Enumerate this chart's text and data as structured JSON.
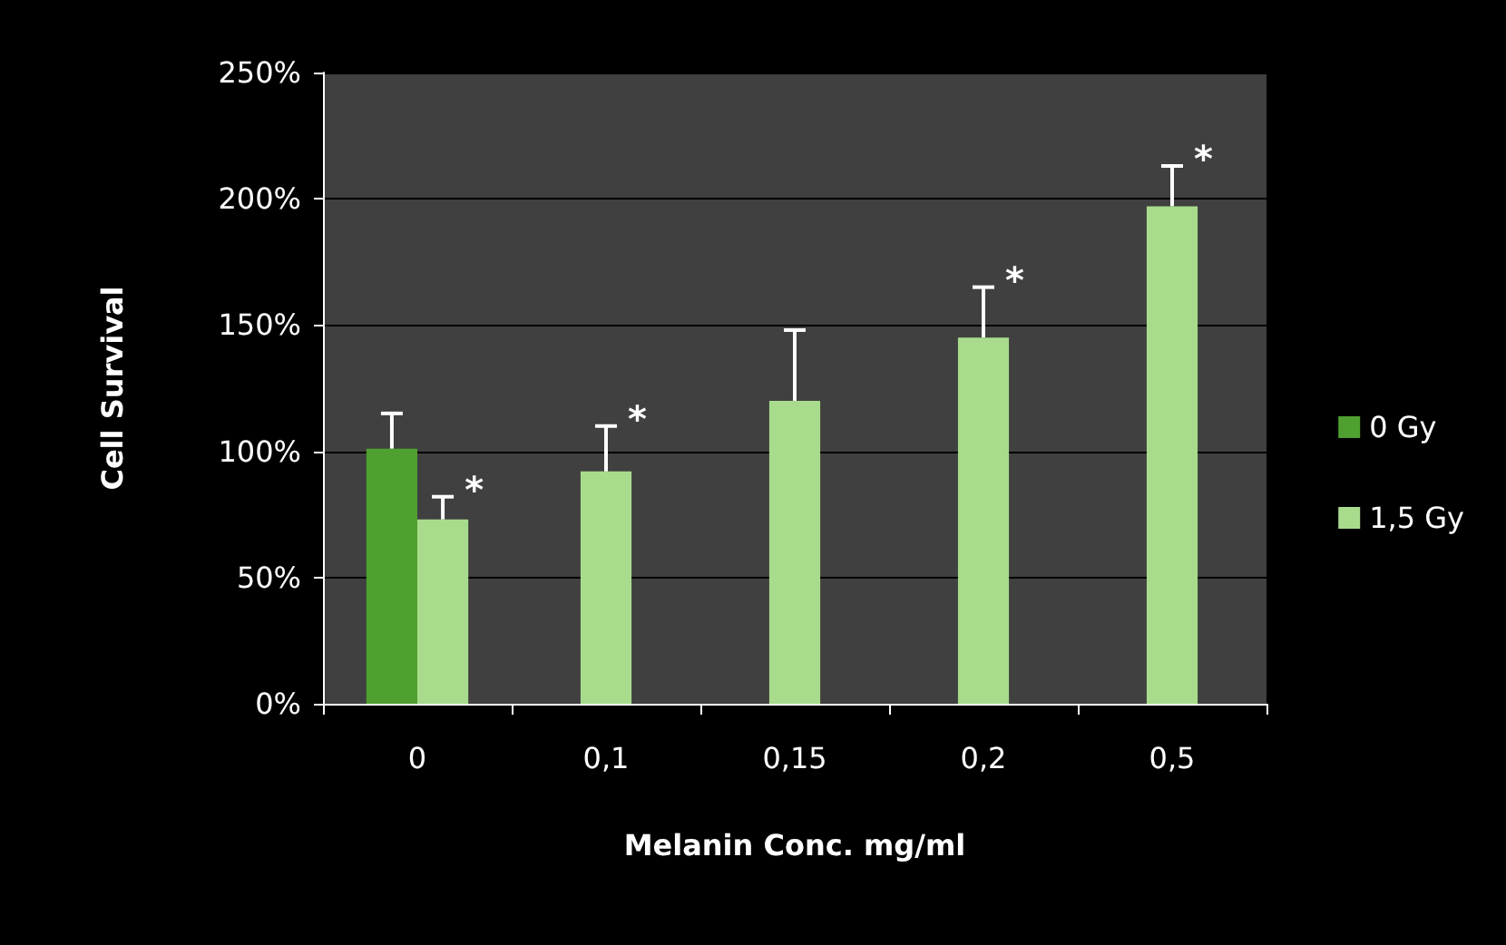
{
  "chart_data": {
    "type": "bar",
    "xlabel": "Melanin Conc. mg/ml",
    "ylabel": "Cell Survival",
    "categories": [
      "0",
      "0,1",
      "0,15",
      "0,2",
      "0,5"
    ],
    "series": [
      {
        "name": "0 Gy",
        "color": "#4fa030",
        "values": [
          101,
          null,
          null,
          null,
          null
        ],
        "errors": [
          [
            101,
            115
          ],
          null,
          null,
          null,
          null
        ]
      },
      {
        "name": "1,5 Gy",
        "color": "#a8dc8c",
        "values": [
          73,
          92,
          120,
          145,
          197
        ],
        "errors": [
          [
            73,
            82
          ],
          [
            92,
            110
          ],
          [
            120,
            148
          ],
          [
            145,
            165
          ],
          [
            197,
            213
          ]
        ]
      }
    ],
    "ylim": [
      0,
      250
    ],
    "yticks": [
      {
        "value": 0,
        "label": "0%"
      },
      {
        "value": 50,
        "label": "50%"
      },
      {
        "value": 100,
        "label": "100%"
      },
      {
        "value": 150,
        "label": "150%"
      },
      {
        "value": 200,
        "label": "200%"
      },
      {
        "value": 250,
        "label": "250%"
      }
    ],
    "grid": "y",
    "legend": "right",
    "annotations": [
      {
        "text": "*",
        "x": "0",
        "y": 82
      },
      {
        "text": "*",
        "x": "0,1",
        "y": 110
      },
      {
        "text": "*",
        "x": "0,2",
        "y": 165
      },
      {
        "text": "*",
        "x": "0,5",
        "y": 213
      }
    ]
  }
}
